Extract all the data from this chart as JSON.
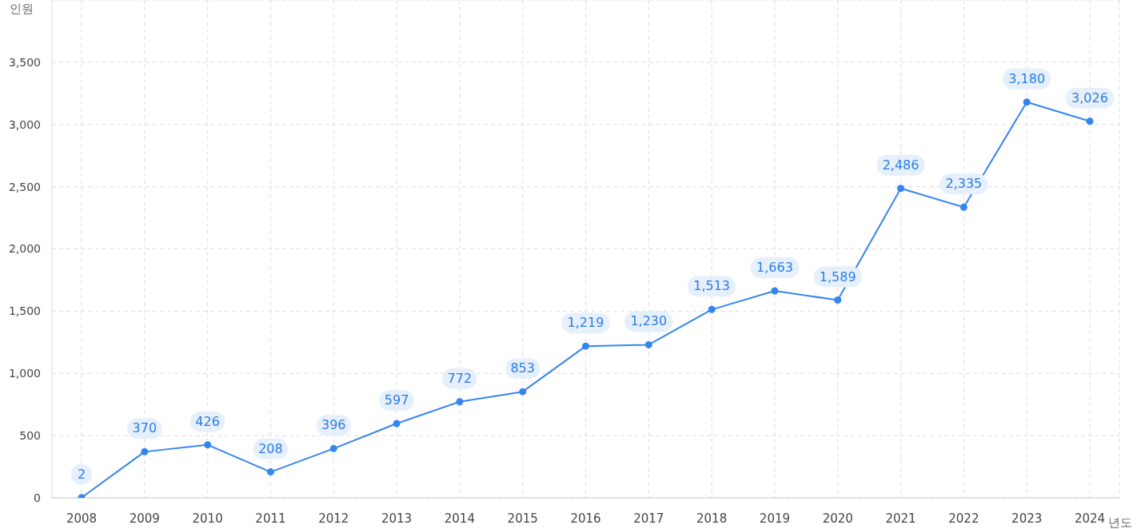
{
  "chart_data": {
    "type": "line",
    "xlabel": "년도",
    "ylabel": "인원",
    "categories": [
      "2008",
      "2009",
      "2010",
      "2011",
      "2012",
      "2013",
      "2014",
      "2015",
      "2016",
      "2017",
      "2018",
      "2019",
      "2020",
      "2021",
      "2022",
      "2023",
      "2024"
    ],
    "series": [
      {
        "color": "#3585ef",
        "values": [
          2,
          370,
          426,
          208,
          396,
          597,
          772,
          853,
          1219,
          1230,
          1513,
          1663,
          1589,
          2486,
          2335,
          3180,
          3026
        ],
        "value_labels": [
          "2",
          "370",
          "426",
          "208",
          "396",
          "597",
          "772",
          "853",
          "1,219",
          "1,230",
          "1,513",
          "1,663",
          "1,589",
          "2,486",
          "2,335",
          "3,180",
          "3,026"
        ]
      }
    ],
    "ylim": [
      0,
      4000
    ],
    "yticks": [
      0,
      500,
      {
        "value": 1000,
        "label": "1,000"
      },
      {
        "value": 1500,
        "label": "1,500"
      },
      {
        "value": 2000,
        "label": "2,000"
      },
      {
        "value": 2500,
        "label": "2,500"
      },
      {
        "value": 3000,
        "label": "3,000"
      },
      {
        "value": 3500,
        "label": "3,500"
      }
    ],
    "grid": true,
    "marker": "circle",
    "line_style": "solid",
    "legend": false
  }
}
